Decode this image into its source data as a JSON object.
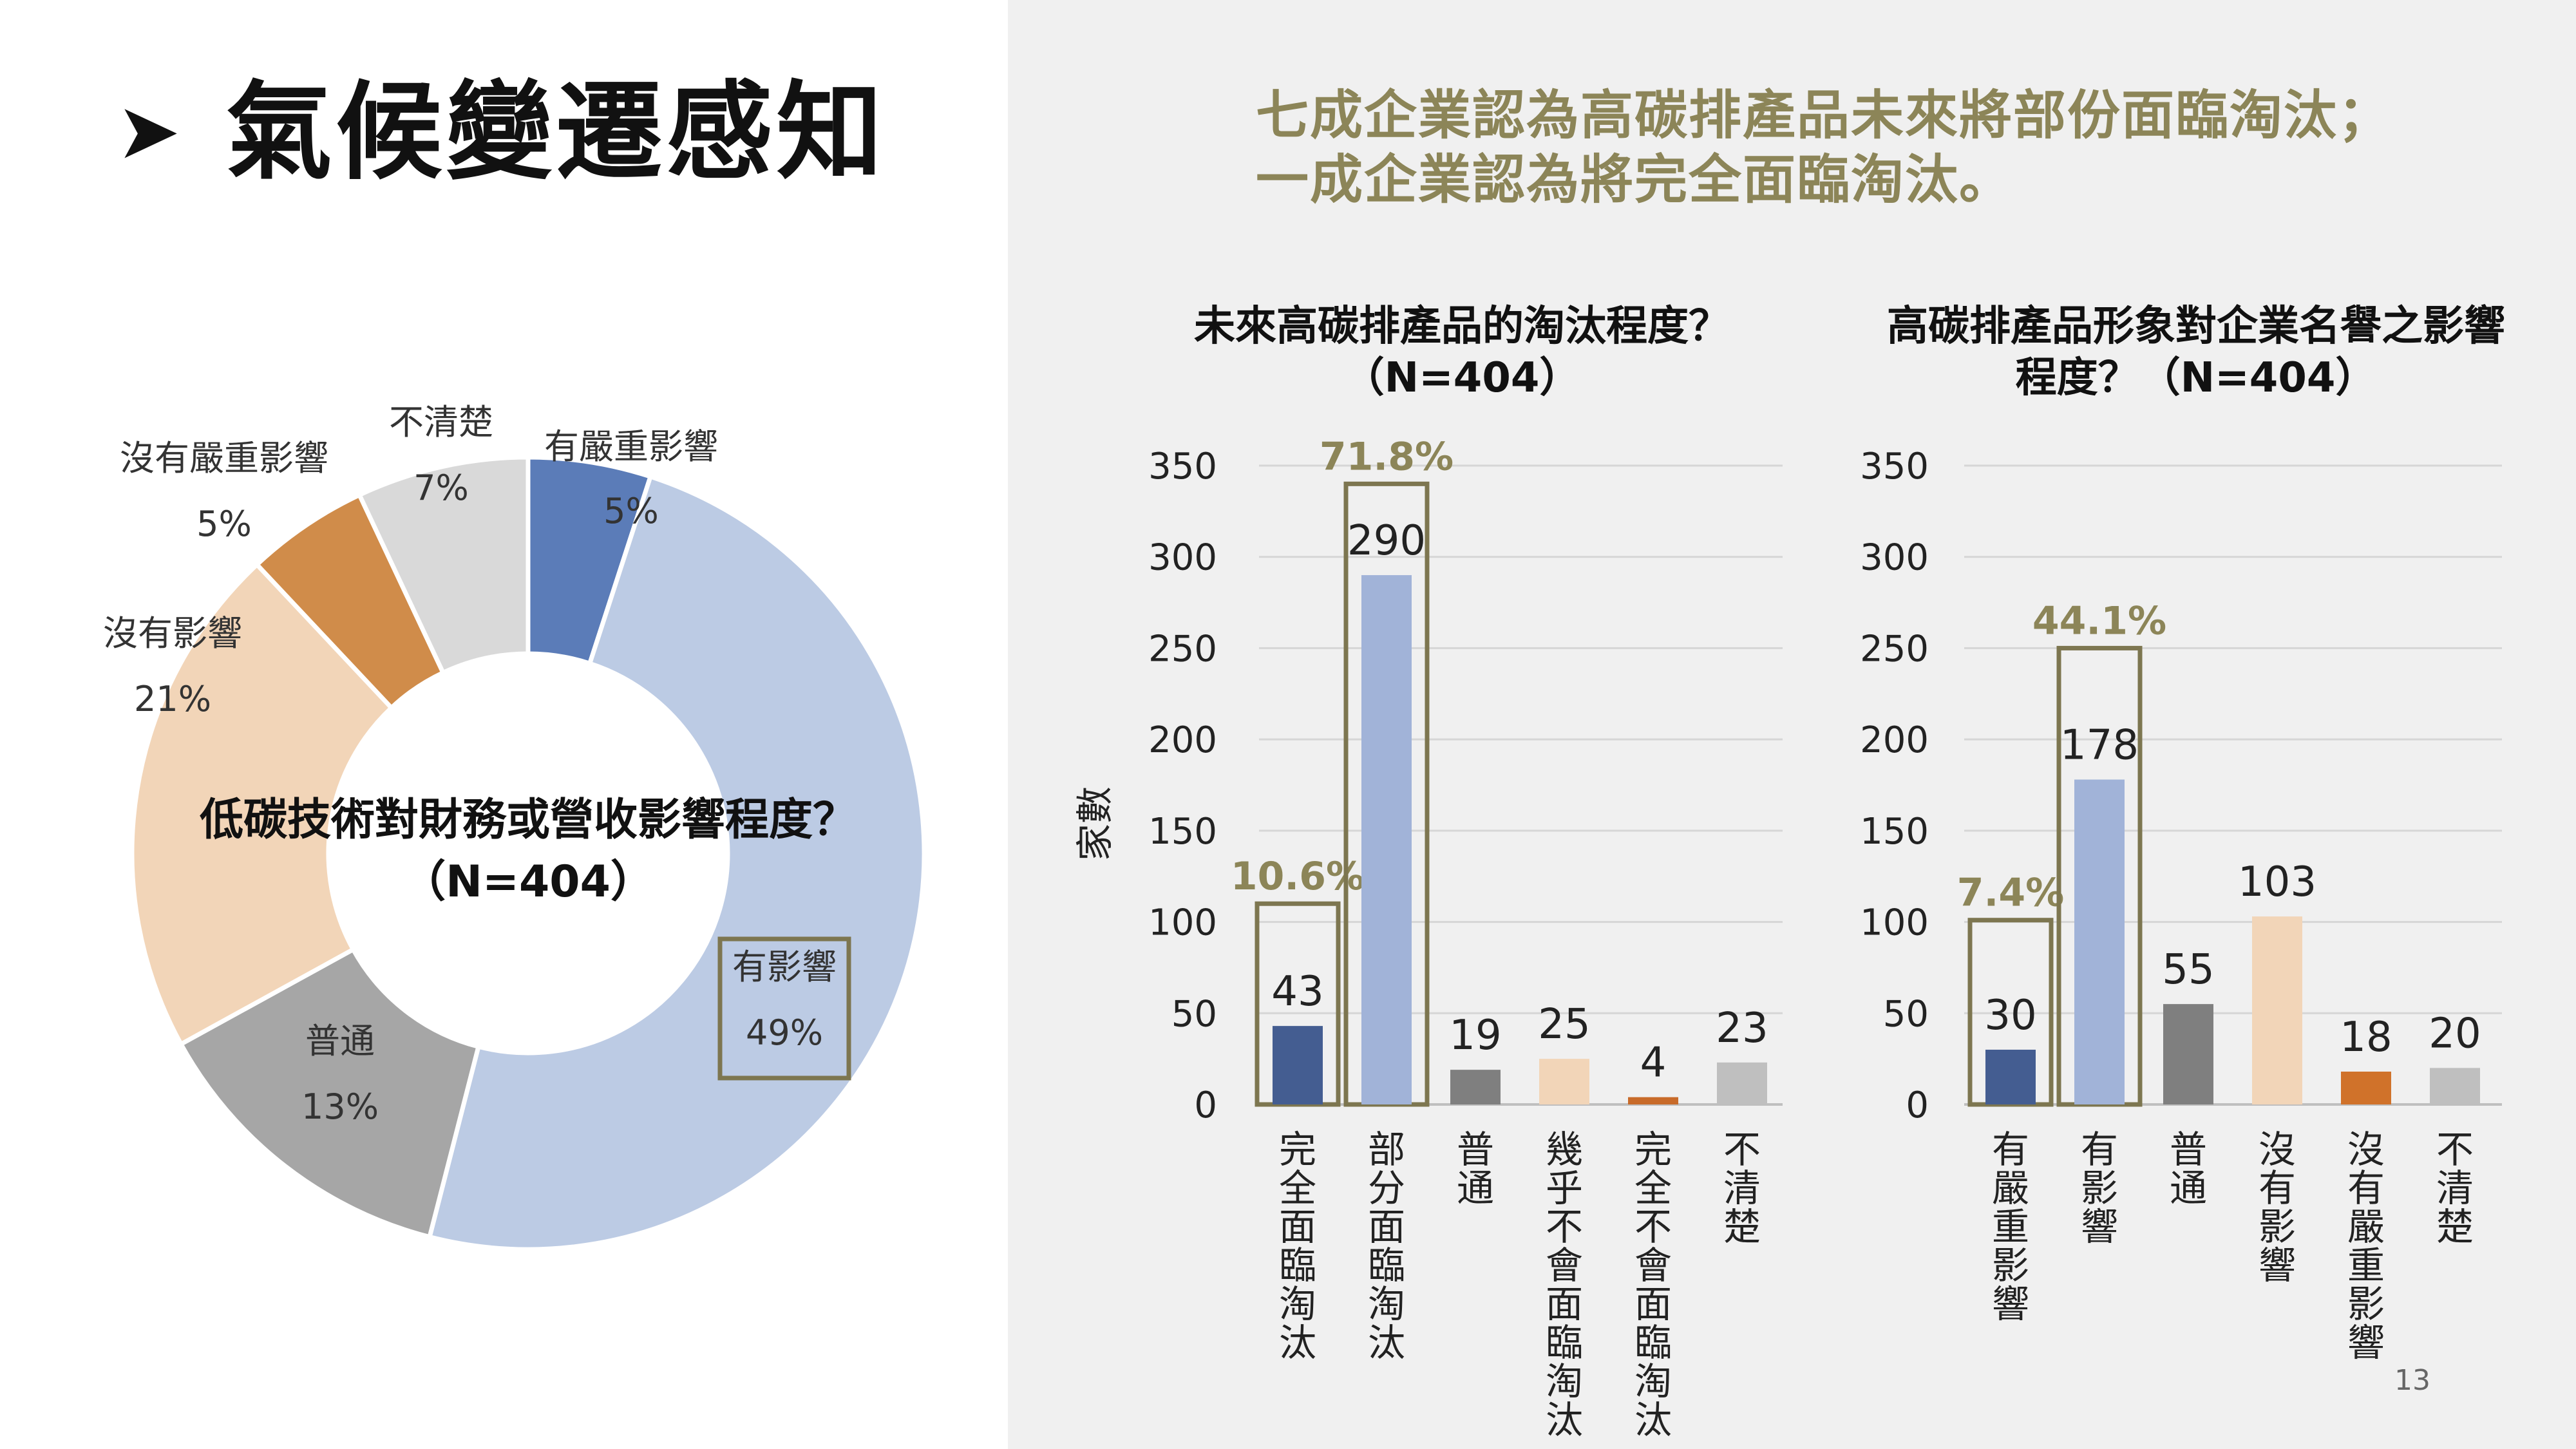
{
  "slide": {
    "title": "氣候變遷感知",
    "bullet_icon": "arrow-right-icon",
    "page_number": "13",
    "headline_line1": "七成企業認為高碳排產品未來將部份面臨淘汰；",
    "headline_line2": "一成企業認為將完全面臨淘汰。"
  },
  "chart_data": [
    {
      "type": "pie",
      "title_line1": "低碳技術對財務或營收影響程度？",
      "title_line2": "（N=404）",
      "slices": [
        {
          "label": "有嚴重影響",
          "value": 5,
          "pct_label": "5%",
          "color": "#5b7cb8"
        },
        {
          "label": "有影響",
          "value": 49,
          "pct_label": "49%",
          "color": "#bccbe4"
        },
        {
          "label": "普通",
          "value": 13,
          "pct_label": "13%",
          "color": "#a6a6a6"
        },
        {
          "label": "沒有影響",
          "value": 21,
          "pct_label": "21%",
          "color": "#f2d5b8"
        },
        {
          "label": "沒有嚴重影響",
          "value": 5,
          "pct_label": "5%",
          "color": "#d08c4a"
        },
        {
          "label": "不清楚",
          "value": 7,
          "pct_label": "7%",
          "color": "#d9d9d9"
        }
      ],
      "highlight": "有影響"
    },
    {
      "type": "bar",
      "title_line1": "未來高碳排產品的淘汰程度？",
      "title_line2": "（N=404）",
      "ylabel": "家數",
      "ylim": [
        0,
        350
      ],
      "yticks": [
        0,
        50,
        100,
        150,
        200,
        250,
        300,
        350
      ],
      "categories": [
        "完全面臨淘汰",
        "部分面臨淘汰",
        "普通",
        "幾乎不會面臨淘汰",
        "完全不會面臨淘汰",
        "不清楚"
      ],
      "values": [
        43,
        290,
        19,
        25,
        4,
        23
      ],
      "colors": [
        "#445d91",
        "#a1b3d8",
        "#7f7f7f",
        "#f2d5b8",
        "#c86b2a",
        "#bfbfbf"
      ],
      "highlights": [
        {
          "index": 0,
          "label": "10.6%",
          "box_top": 110
        },
        {
          "index": 1,
          "label": "71.8%",
          "box_top": 340
        }
      ]
    },
    {
      "type": "bar",
      "title_line1": "高碳排產品形象對企業名譽之影響",
      "title_line2": "程度？（N=404）",
      "ylim": [
        0,
        350
      ],
      "yticks": [
        0,
        50,
        100,
        150,
        200,
        250,
        300,
        350
      ],
      "categories": [
        "有嚴重影響",
        "有影響",
        "普通",
        "沒有影響",
        "沒有嚴重影響",
        "不清楚"
      ],
      "values": [
        30,
        178,
        55,
        103,
        18,
        20
      ],
      "colors": [
        "#445d91",
        "#a1b3d8",
        "#7f7f7f",
        "#f2d5b8",
        "#d0722a",
        "#bfbfbf"
      ],
      "highlights": [
        {
          "index": 0,
          "label": "7.4%",
          "box_top": 101
        },
        {
          "index": 1,
          "label": "44.1%",
          "box_top": 250
        }
      ]
    }
  ]
}
